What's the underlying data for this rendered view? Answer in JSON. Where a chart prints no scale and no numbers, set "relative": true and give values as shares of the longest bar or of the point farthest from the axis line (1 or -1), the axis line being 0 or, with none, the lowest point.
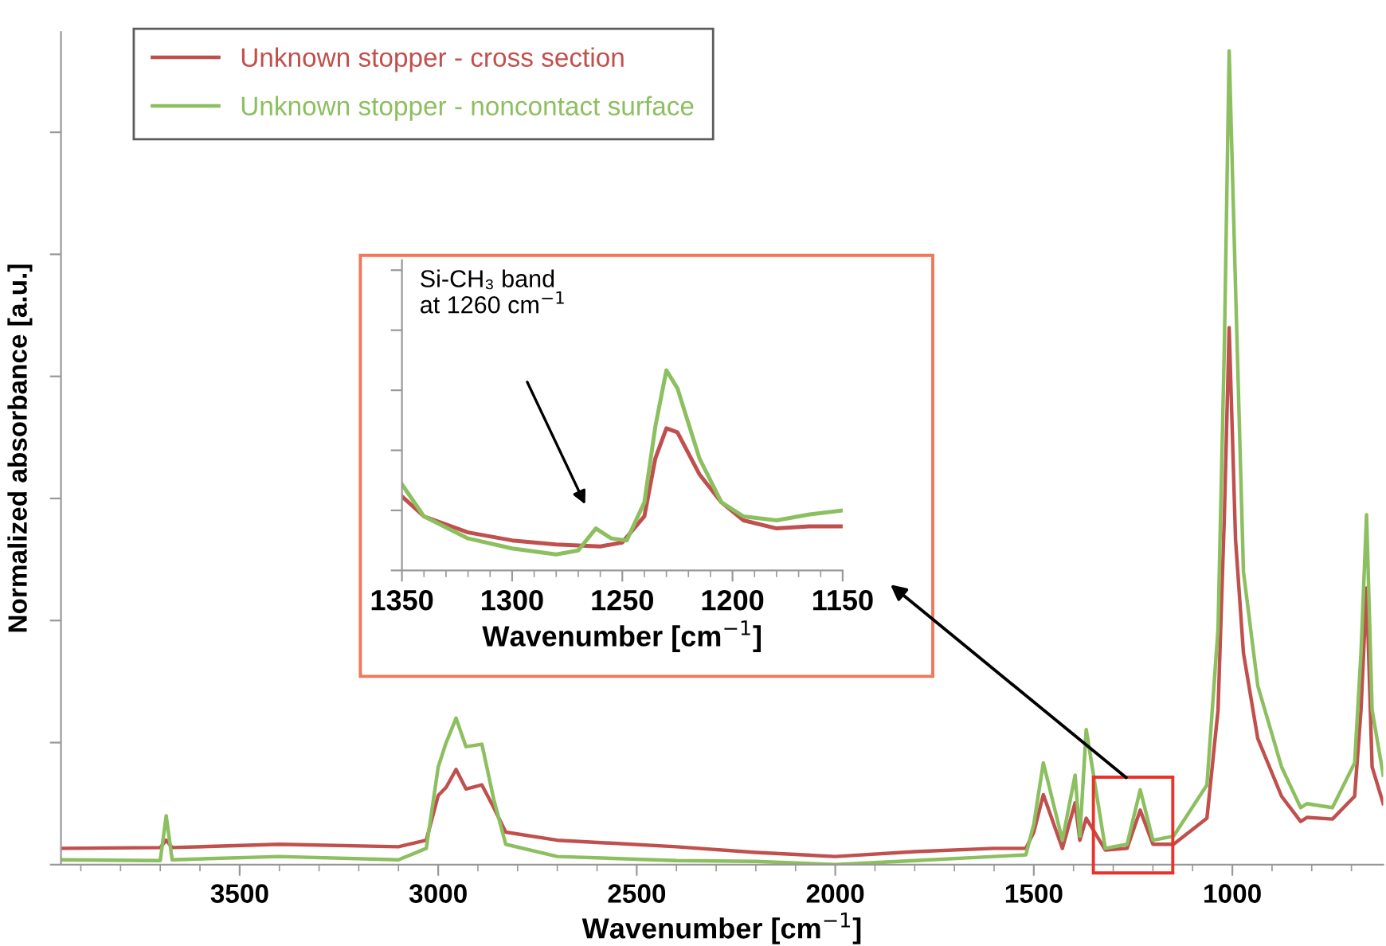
{
  "chart_data": [
    {
      "type": "line",
      "relative": true,
      "xlabel": "Wavenumber [cm$^{−1}$]",
      "ylabel": "Normalized absorbance [a.u.]",
      "xlim": [
        3950,
        620
      ],
      "xticks": [
        3500,
        3000,
        2500,
        2000,
        1500,
        1000
      ],
      "tick_labels": "x",
      "legend": "top left",
      "grid": false,
      "series": [
        {
          "name": "Unknown stopper - cross section",
          "color": "#c0504d",
          "x": [
            3950,
            3700,
            3685,
            3670,
            3400,
            3100,
            3030,
            3000,
            2980,
            2955,
            2930,
            2890,
            2860,
            2830,
            2700,
            2400,
            2200,
            2000,
            1800,
            1600,
            1520,
            1500,
            1476,
            1428,
            1396,
            1384,
            1368,
            1320,
            1265,
            1232,
            1200,
            1148,
            1064,
            1036,
            1020,
            1008,
            992,
            972,
            936,
            876,
            828,
            812,
            748,
            692,
            676,
            662,
            648,
            620
          ],
          "values": [
            0.02,
            0.021,
            0.03,
            0.021,
            0.025,
            0.022,
            0.03,
            0.085,
            0.095,
            0.117,
            0.093,
            0.098,
            0.07,
            0.04,
            0.03,
            0.022,
            0.015,
            0.01,
            0.016,
            0.02,
            0.02,
            0.04,
            0.086,
            0.02,
            0.076,
            0.03,
            0.057,
            0.018,
            0.02,
            0.067,
            0.025,
            0.025,
            0.057,
            0.19,
            0.43,
            0.66,
            0.4,
            0.26,
            0.155,
            0.084,
            0.053,
            0.058,
            0.056,
            0.084,
            0.19,
            0.34,
            0.12,
            0.075
          ]
        },
        {
          "name": "Unknown stopper - noncontact surface",
          "color": "#8cbf5f",
          "x": [
            3950,
            3700,
            3685,
            3670,
            3400,
            3100,
            3030,
            3000,
            2980,
            2955,
            2930,
            2890,
            2860,
            2830,
            2700,
            2400,
            2200,
            2000,
            1800,
            1600,
            1520,
            1500,
            1476,
            1428,
            1396,
            1384,
            1368,
            1320,
            1265,
            1232,
            1200,
            1148,
            1064,
            1036,
            1020,
            1008,
            992,
            972,
            936,
            876,
            828,
            812,
            748,
            692,
            676,
            662,
            648,
            620
          ],
          "values": [
            0.006,
            0.005,
            0.06,
            0.006,
            0.01,
            0.006,
            0.02,
            0.12,
            0.15,
            0.18,
            0.145,
            0.148,
            0.08,
            0.025,
            0.01,
            0.005,
            0.004,
            0.0,
            0.005,
            0.01,
            0.012,
            0.05,
            0.125,
            0.03,
            0.11,
            0.035,
            0.166,
            0.02,
            0.025,
            0.092,
            0.03,
            0.035,
            0.098,
            0.29,
            0.64,
            1.0,
            0.71,
            0.36,
            0.22,
            0.12,
            0.07,
            0.075,
            0.07,
            0.125,
            0.26,
            0.43,
            0.19,
            0.11
          ]
        }
      ]
    },
    {
      "type": "line",
      "relative": true,
      "xlabel": "Wavenumber [cm$^{−1}$]",
      "xlim": [
        1350,
        1150
      ],
      "xticks": [
        1350,
        1300,
        1250,
        1200,
        1150
      ],
      "tick_labels": "x",
      "annotations": [
        "Si-CH₃ band\nat 1260 cm$^{−1}$"
      ],
      "series": [
        {
          "color": "#c0504d",
          "x": [
            1350,
            1340,
            1320,
            1300,
            1280,
            1260,
            1250,
            1240,
            1235,
            1230,
            1225,
            1215,
            1205,
            1195,
            1180,
            1165,
            1150
          ],
          "values": [
            0.37,
            0.27,
            0.19,
            0.15,
            0.13,
            0.12,
            0.14,
            0.27,
            0.56,
            0.71,
            0.69,
            0.48,
            0.34,
            0.25,
            0.21,
            0.22,
            0.22
          ]
        },
        {
          "color": "#8cbf5f",
          "x": [
            1350,
            1340,
            1320,
            1300,
            1280,
            1270,
            1262,
            1255,
            1248,
            1240,
            1235,
            1230,
            1225,
            1215,
            1205,
            1195,
            1180,
            1165,
            1150
          ],
          "values": [
            0.43,
            0.27,
            0.16,
            0.11,
            0.08,
            0.1,
            0.21,
            0.16,
            0.15,
            0.34,
            0.72,
            1.0,
            0.91,
            0.56,
            0.34,
            0.27,
            0.25,
            0.28,
            0.3
          ]
        }
      ]
    }
  ]
}
